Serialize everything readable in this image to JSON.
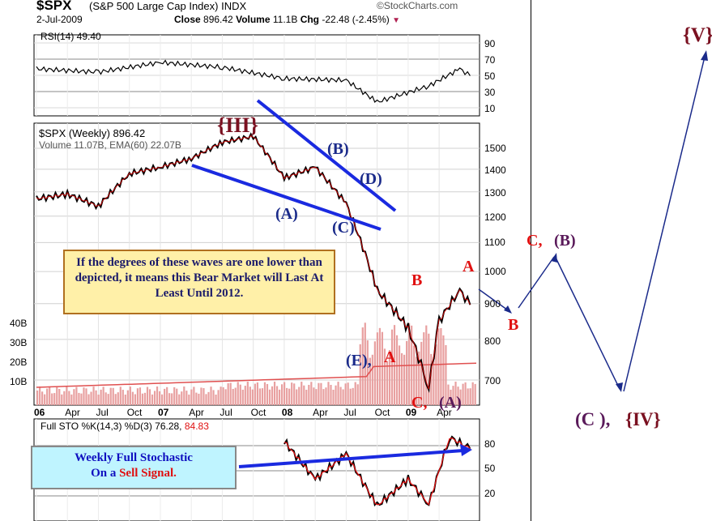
{
  "header": {
    "symbol": "$SPX",
    "name": "(S&P 500 Large Cap Index) INDX",
    "date": "2-Jul-2009",
    "close_label": "Close",
    "close_value": "896.42",
    "volume_label": "Volume",
    "volume_value": "11.1B",
    "chg_label": "Chg",
    "chg_value": "-22.48 (-2.45%)",
    "chg_icon": "down-triangle-icon",
    "watermark": "©StockCharts.com"
  },
  "rsi_panel": {
    "label": "RSI(14) 49.40",
    "levels": [
      "90",
      "70",
      "50",
      "30",
      "10"
    ]
  },
  "price_panel": {
    "legend_line1": "$SPX (Weekly) 896.42",
    "legend_line2": "Volume 11.07B, EMA(60) 22.07B",
    "price_ticks": [
      "1500",
      "1400",
      "1300",
      "1200",
      "1100",
      "1000",
      "900",
      "800",
      "700"
    ],
    "volume_ticks": [
      "40B",
      "30B",
      "20B",
      "10B"
    ],
    "x_ticks": [
      "06",
      "Apr",
      "Jul",
      "Oct",
      "07",
      "Apr",
      "Jul",
      "Oct",
      "08",
      "Apr",
      "Jul",
      "Oct",
      "09",
      "Apr"
    ]
  },
  "sto_panel": {
    "label_prefix": "Full STO %K(14,3) %D(3) 76.28,",
    "label_red": "84.83",
    "levels": [
      "80",
      "50",
      "20"
    ]
  },
  "wave_labels": {
    "III": "{III}",
    "A_paren": "(A)",
    "B_paren": "(B)",
    "C_paren": "(C)",
    "D_paren": "(D)",
    "E_paren": "(E),",
    "A_red_after_E": "A",
    "B_red_mid": "B",
    "C_red_bottom": "C,",
    "A_paren_bottom": "(A)",
    "A_red_top": "A",
    "B_red_proj": "B",
    "C_red_proj": "C,",
    "B_paren_proj": "(B)",
    "C_paren_proj": "(C ),",
    "IV_proj": "{IV}",
    "V_proj": "{V}"
  },
  "notes": {
    "bear_note": "If the degrees of these waves are one lower than depicted, it means this Bear Market will Last At Least Until 2012.",
    "sto_note_line1": "Weekly Full Stochastic",
    "sto_note_prefix": "On a",
    "sto_note_red": "Sell Signal."
  },
  "colors": {
    "red_label": "#e01010",
    "blue_label": "#1a2a8a",
    "maroon_label": "#7a1020",
    "purple_label": "#5a1a5a",
    "trendline": "#1a2ae0",
    "note_bg": "#fff0a8",
    "note_border": "#b07020",
    "sto_note_bg": "#bff4ff",
    "sto_note_text": "#1010c0",
    "volume_bar": "#e8a0a0",
    "ema_line": "#e05050"
  },
  "chart_data": {
    "type": "line",
    "title": "$SPX (S&P 500 Large Cap Index) INDX",
    "xlabel": "",
    "ylabel": "",
    "series": [
      {
        "name": "$SPX (Weekly)",
        "x": [
          "2006-01",
          "2006-04",
          "2006-07",
          "2006-10",
          "2007-01",
          "2007-04",
          "2007-07",
          "2007-10",
          "2008-01",
          "2008-04",
          "2008-07",
          "2008-10",
          "2009-01",
          "2009-03",
          "2009-04",
          "2009-06",
          "2009-07"
        ],
        "values": [
          1270,
          1290,
          1240,
          1380,
          1410,
          1450,
          1530,
          1560,
          1360,
          1410,
          1250,
          940,
          830,
          680,
          850,
          940,
          896.42
        ]
      },
      {
        "name": "RSI(14)",
        "x": [
          "2006-01",
          "2006-07",
          "2007-01",
          "2007-07",
          "2008-01",
          "2008-07",
          "2008-10",
          "2009-03",
          "2009-06",
          "2009-07"
        ],
        "values": [
          58,
          54,
          66,
          60,
          46,
          44,
          17,
          37,
          58,
          49.4
        ]
      },
      {
        "name": "Full STO %K(14,3)",
        "x": [
          "2008-01",
          "2008-04",
          "2008-07",
          "2008-10",
          "2009-01",
          "2009-03",
          "2009-05",
          "2009-07"
        ],
        "values": [
          85,
          40,
          70,
          8,
          40,
          10,
          90,
          76.28
        ]
      }
    ],
    "price_ylim": [
      650,
      1600
    ],
    "rsi_levels": [
      70,
      30
    ],
    "sto_levels": [
      80,
      20
    ],
    "grid": true
  }
}
